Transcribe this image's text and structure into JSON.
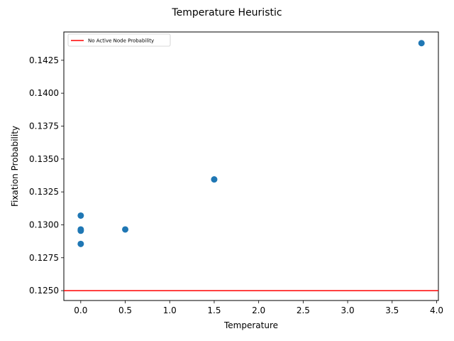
{
  "chart_data": {
    "type": "scatter",
    "title": "Temperature Heuristic",
    "xlabel": "Temperature",
    "ylabel": "Fixation Probability",
    "xlim": [
      -0.19,
      4.02
    ],
    "ylim": [
      0.12425,
      0.14465
    ],
    "x_ticks": [
      0.0,
      0.5,
      1.0,
      1.5,
      2.0,
      2.5,
      3.0,
      3.5,
      4.0
    ],
    "x_tick_labels": [
      "0.0",
      "0.5",
      "1.0",
      "1.5",
      "2.0",
      "2.5",
      "3.0",
      "3.5",
      "4.0"
    ],
    "y_ticks": [
      0.125,
      0.1275,
      0.13,
      0.1325,
      0.135,
      0.1375,
      0.14,
      0.1425
    ],
    "y_tick_labels": [
      "0.1250",
      "0.1275",
      "0.1300",
      "0.1325",
      "0.1350",
      "0.1375",
      "0.1400",
      "0.1425"
    ],
    "grid": false,
    "series": [
      {
        "color": "#1f77b4",
        "points": [
          {
            "x": 0.0,
            "y": 0.1307
          },
          {
            "x": 0.0,
            "y": 0.12965
          },
          {
            "x": 0.0,
            "y": 0.12955
          },
          {
            "x": 0.0,
            "y": 0.12855
          },
          {
            "x": 0.5,
            "y": 0.12965
          },
          {
            "x": 1.5,
            "y": 0.13345
          },
          {
            "x": 3.83,
            "y": 0.1438
          }
        ]
      }
    ],
    "reference_lines": [
      {
        "name": "No Active Node Probability",
        "orientation": "horizontal",
        "y": 0.125,
        "color": "#ff0000"
      }
    ],
    "legend": {
      "placement": "top-left"
    }
  }
}
